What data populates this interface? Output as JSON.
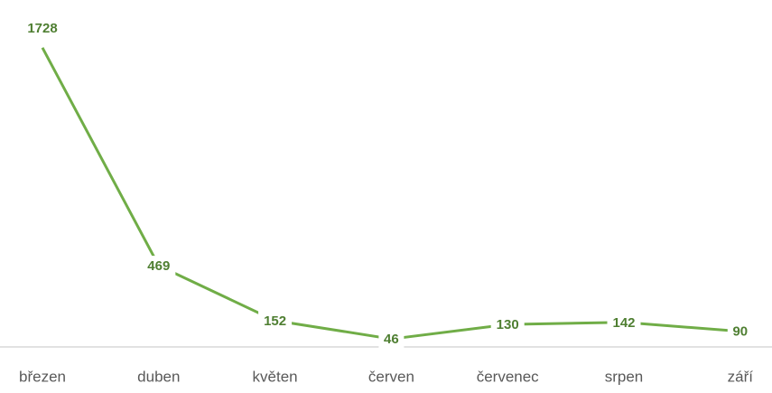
{
  "chart_data": {
    "type": "line",
    "categories": [
      "březen",
      "duben",
      "květen",
      "červen",
      "červenec",
      "srpen",
      "září"
    ],
    "values": [
      1728,
      469,
      152,
      46,
      130,
      142,
      90
    ],
    "color": "#70ad47",
    "ylim": [
      0,
      1800
    ]
  }
}
